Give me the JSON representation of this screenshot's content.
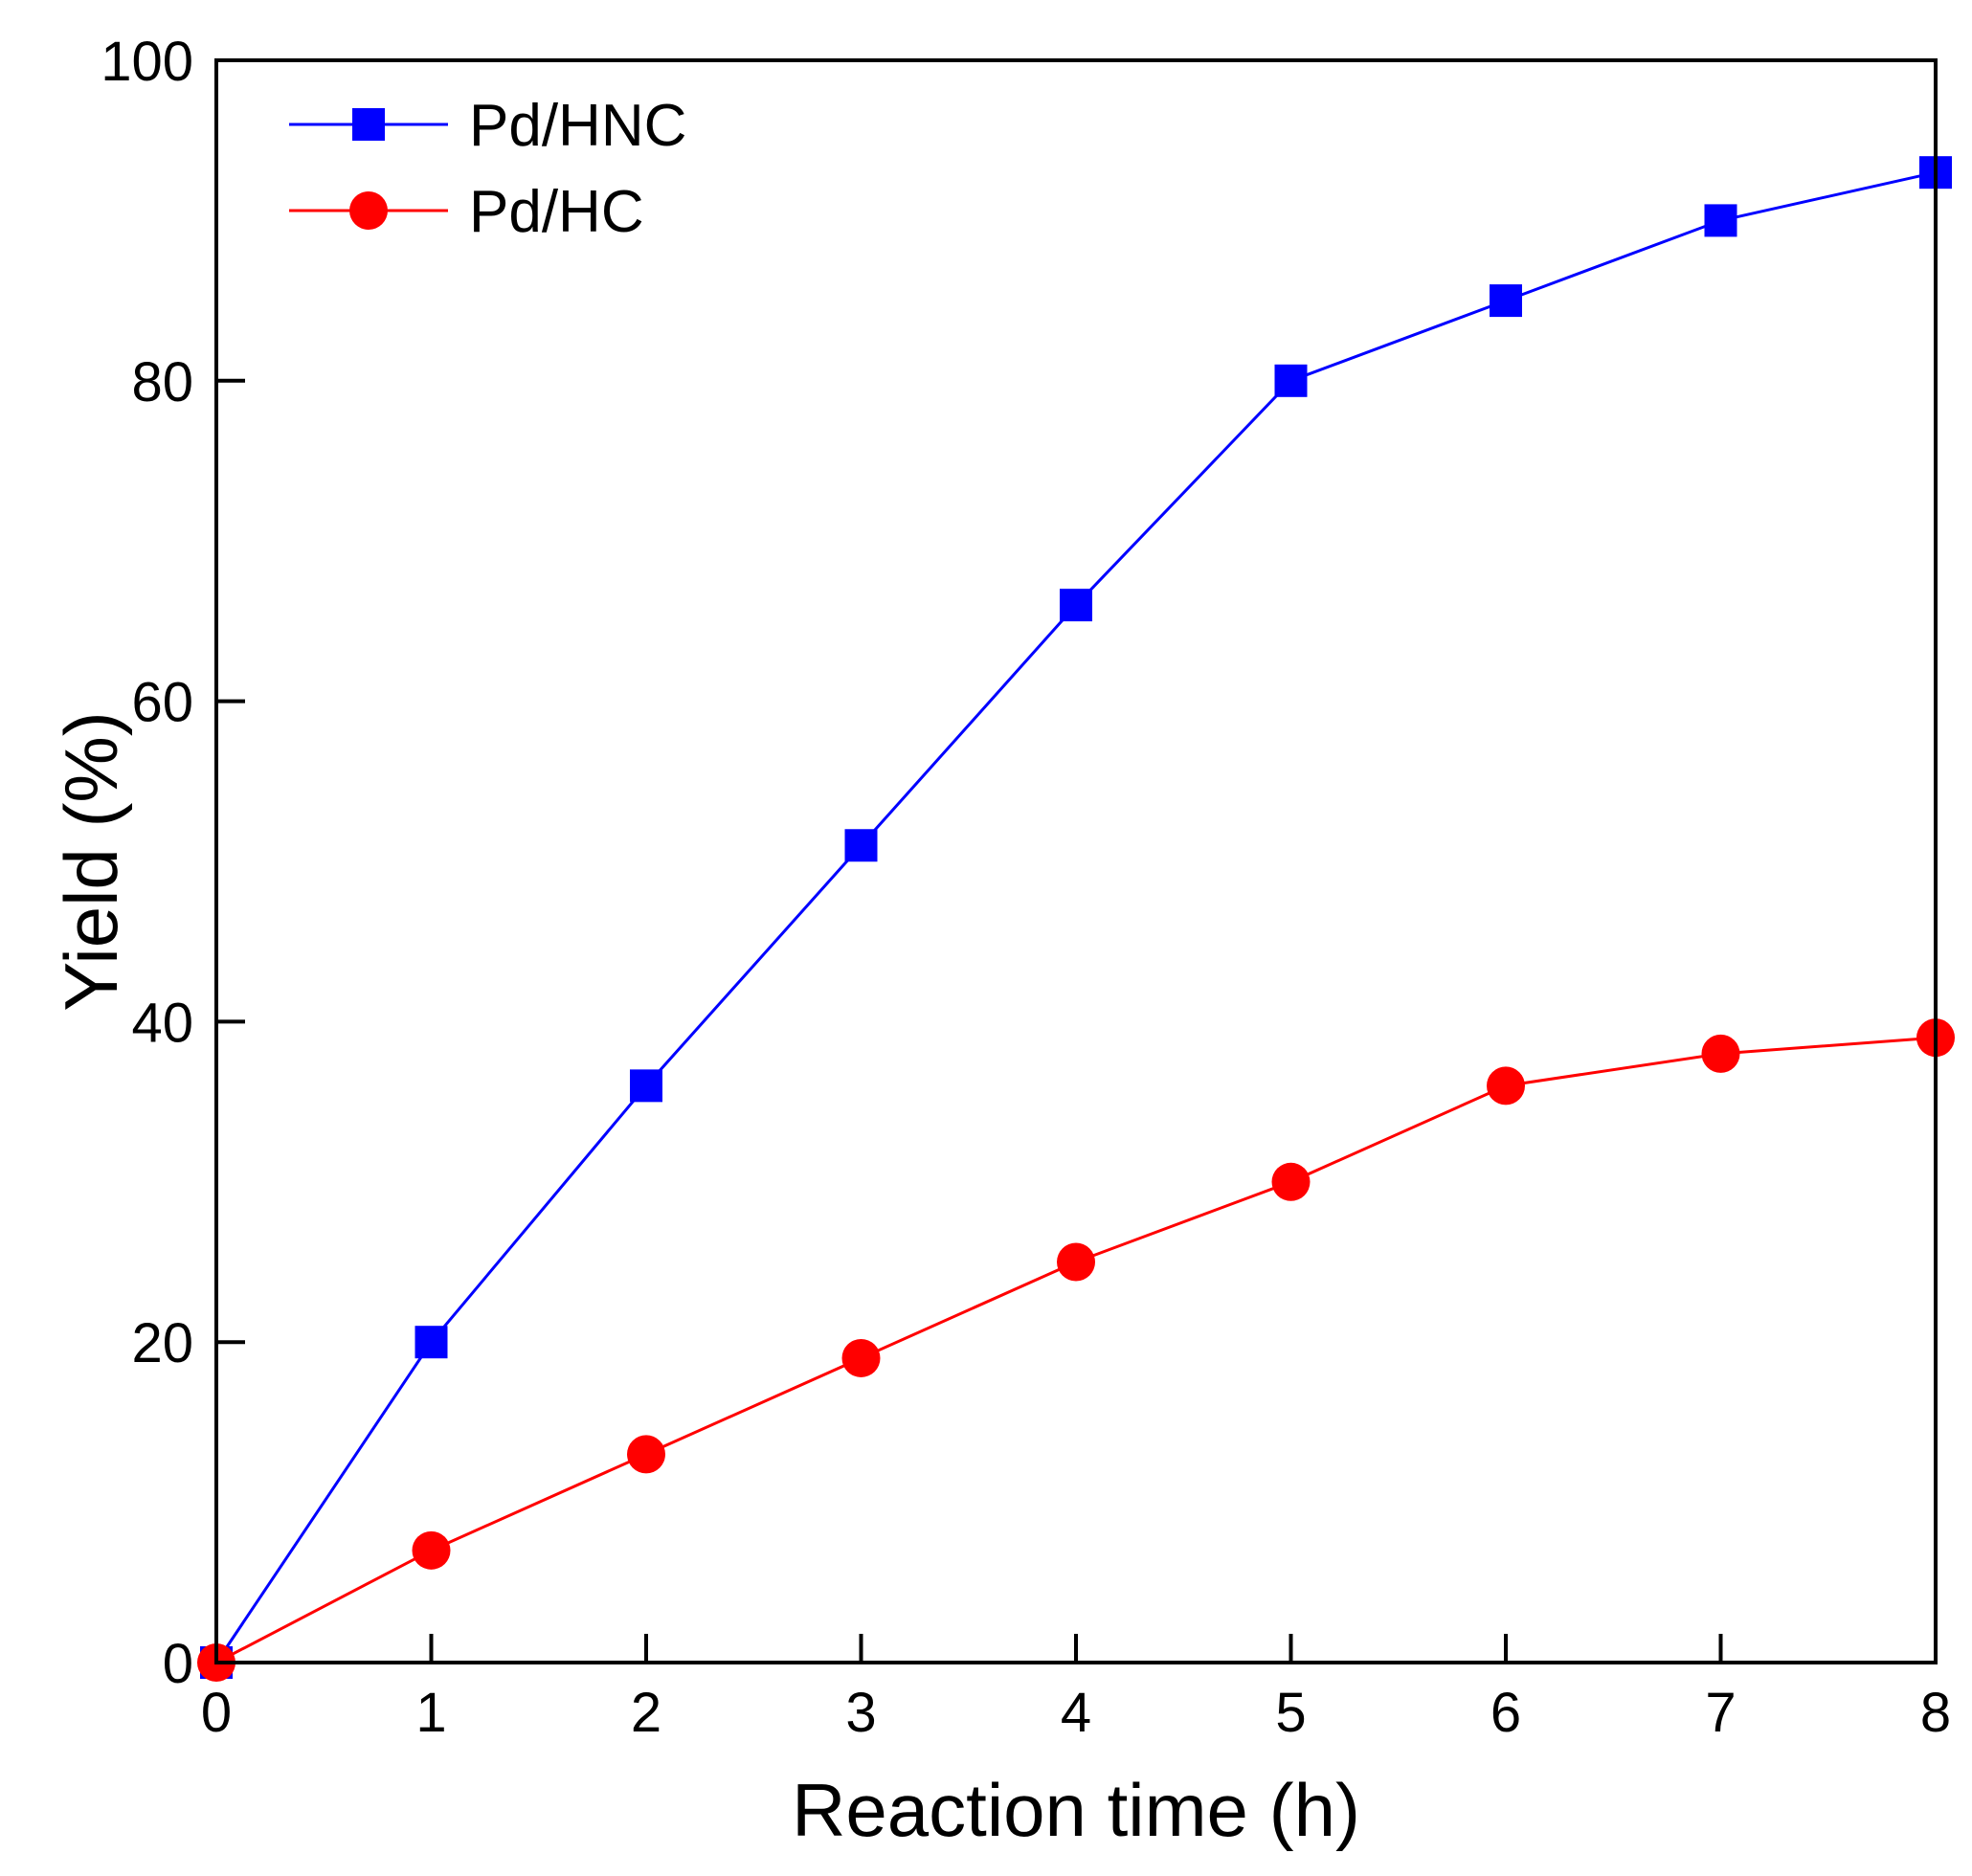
{
  "chart_data": {
    "type": "line",
    "title": "",
    "xlabel": "Reaction time (h)",
    "ylabel": "Yield (%)",
    "xlim": [
      0,
      8
    ],
    "ylim": [
      0,
      100
    ],
    "x": [
      0,
      1,
      2,
      3,
      4,
      5,
      6,
      7,
      8
    ],
    "xticks": [
      "0",
      "1",
      "2",
      "3",
      "4",
      "5",
      "6",
      "7",
      "8"
    ],
    "yticks": [
      "0",
      "20",
      "40",
      "60",
      "80",
      "100"
    ],
    "grid": false,
    "legend_position": "top-left",
    "series": [
      {
        "name": "Pd/HNC",
        "marker": "square",
        "color": "#0000ff",
        "values": [
          0,
          20,
          36,
          51,
          66,
          80,
          85,
          90,
          93
        ]
      },
      {
        "name": "Pd/HC",
        "marker": "circle",
        "color": "#ff0000",
        "values": [
          0,
          7,
          13,
          19,
          25,
          30,
          36,
          38,
          39
        ]
      }
    ]
  }
}
